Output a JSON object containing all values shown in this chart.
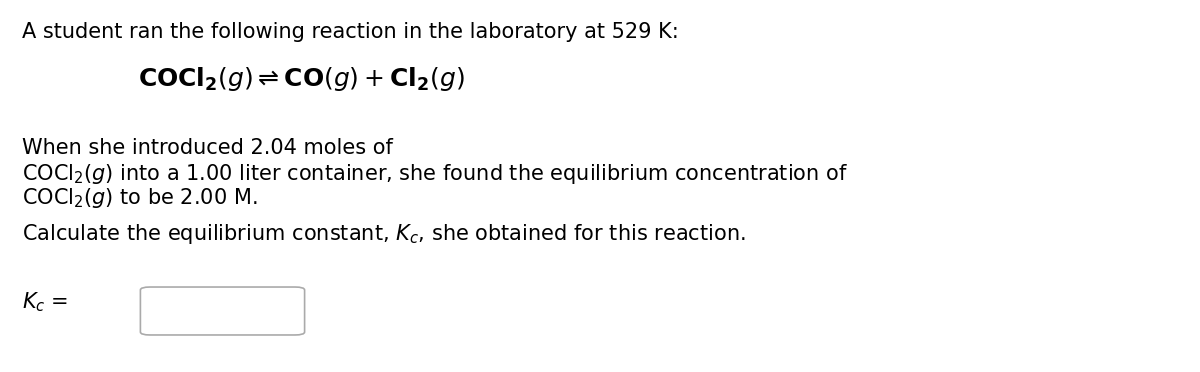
{
  "background_color": "#ffffff",
  "text_color": "#000000",
  "line1": "A student ran the following reaction in the laboratory at 529 K:",
  "reaction": "$\\mathbf{\\mathrm{COCl_2}}(g) \\rightleftharpoons \\mathbf{\\mathrm{CO}}(g) + \\mathbf{\\mathrm{Cl_2}}(g)$",
  "line3a": "When she introduced 2.04 moles of",
  "line3b_pre": "$\\mathrm{\\overline{C}OCl_2}(g)$",
  "line3b_rest": " into a 1.00 liter container, she found the equilibrium concentration of",
  "line3c_pre": "$\\mathrm{\\overline{C}OCl_2}(g)$",
  "line3c_rest": " to be 2.00 M.",
  "line4_pre": "Calculate the equilibrium constant, ",
  "line4_kc": "$K_c$",
  "line4_rest": ", she obtained for this reaction.",
  "kc_label": "$K_c$",
  "font_size": 15,
  "font_size_reaction": 18,
  "font_family": "DejaVu Sans",
  "fig_width": 12.0,
  "fig_height": 3.72,
  "dpi": 100
}
